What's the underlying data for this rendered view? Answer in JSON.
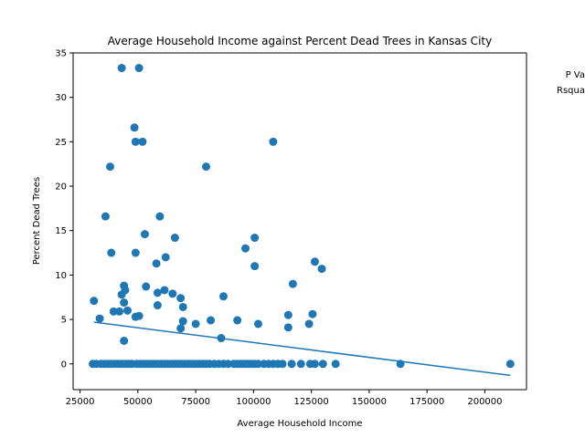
{
  "chart_data": {
    "type": "scatter",
    "title": "Average Household Income against Percent Dead Trees in Kansas City",
    "xlabel": "Average Household Income",
    "ylabel": "Percent Dead Trees",
    "xlim": [
      22000,
      218000
    ],
    "ylim": [
      -2.9,
      35
    ],
    "xticks": [
      25000,
      50000,
      75000,
      100000,
      125000,
      150000,
      175000,
      200000
    ],
    "yticks": [
      0,
      5,
      10,
      15,
      20,
      25,
      30,
      35
    ],
    "grid": false,
    "legend": "none",
    "annotations": [
      "P Va",
      "Rsqua"
    ],
    "colors": {
      "points": "#1f77b4",
      "line": "#1f77b4"
    },
    "trendline": {
      "x": [
        31000,
        211000
      ],
      "y": [
        4.7,
        -1.3
      ]
    },
    "points": [
      [
        43000,
        33.3
      ],
      [
        50500,
        33.3
      ],
      [
        48500,
        26.6
      ],
      [
        49000,
        25.0
      ],
      [
        52000,
        25.0
      ],
      [
        108500,
        25.0
      ],
      [
        38000,
        22.2
      ],
      [
        79500,
        22.2
      ],
      [
        36000,
        16.6
      ],
      [
        59500,
        16.6
      ],
      [
        53000,
        14.6
      ],
      [
        66000,
        14.2
      ],
      [
        100500,
        14.2
      ],
      [
        96500,
        13.0
      ],
      [
        38500,
        12.5
      ],
      [
        49000,
        12.5
      ],
      [
        62000,
        12.0
      ],
      [
        126500,
        11.5
      ],
      [
        58000,
        11.3
      ],
      [
        100500,
        11.0
      ],
      [
        129500,
        10.7
      ],
      [
        117000,
        9.0
      ],
      [
        44000,
        8.8
      ],
      [
        53500,
        8.7
      ],
      [
        44500,
        8.3
      ],
      [
        61500,
        8.3
      ],
      [
        43000,
        7.8
      ],
      [
        58500,
        8.0
      ],
      [
        65000,
        7.9
      ],
      [
        87000,
        7.6
      ],
      [
        68500,
        7.4
      ],
      [
        31000,
        7.1
      ],
      [
        44000,
        6.9
      ],
      [
        58500,
        6.6
      ],
      [
        69500,
        6.4
      ],
      [
        45500,
        6.0
      ],
      [
        39500,
        5.9
      ],
      [
        42000,
        5.9
      ],
      [
        49000,
        5.3
      ],
      [
        50500,
        5.4
      ],
      [
        33500,
        5.1
      ],
      [
        115000,
        5.5
      ],
      [
        125500,
        5.6
      ],
      [
        81500,
        4.9
      ],
      [
        69500,
        4.8
      ],
      [
        93000,
        4.9
      ],
      [
        102000,
        4.5
      ],
      [
        124000,
        4.5
      ],
      [
        75000,
        4.5
      ],
      [
        115000,
        4.1
      ],
      [
        68500,
        4.0
      ],
      [
        86000,
        2.9
      ],
      [
        44000,
        2.6
      ],
      [
        30500,
        0
      ],
      [
        32000,
        0
      ],
      [
        34000,
        0
      ],
      [
        35500,
        0
      ],
      [
        37000,
        0
      ],
      [
        38500,
        0
      ],
      [
        40000,
        0
      ],
      [
        41500,
        0
      ],
      [
        43000,
        0
      ],
      [
        44500,
        0
      ],
      [
        46000,
        0
      ],
      [
        47500,
        0
      ],
      [
        49500,
        0
      ],
      [
        51000,
        0
      ],
      [
        52500,
        0
      ],
      [
        54000,
        0
      ],
      [
        55500,
        0
      ],
      [
        57000,
        0
      ],
      [
        58500,
        0
      ],
      [
        60000,
        0
      ],
      [
        61500,
        0
      ],
      [
        63000,
        0
      ],
      [
        64500,
        0
      ],
      [
        66000,
        0
      ],
      [
        67500,
        0
      ],
      [
        69000,
        0
      ],
      [
        70500,
        0
      ],
      [
        72000,
        0
      ],
      [
        73500,
        0
      ],
      [
        75000,
        0
      ],
      [
        76500,
        0
      ],
      [
        78000,
        0
      ],
      [
        79500,
        0
      ],
      [
        81000,
        0
      ],
      [
        83000,
        0
      ],
      [
        85000,
        0
      ],
      [
        87000,
        0
      ],
      [
        89000,
        0
      ],
      [
        91500,
        0
      ],
      [
        93000,
        0
      ],
      [
        94500,
        0
      ],
      [
        96000,
        0
      ],
      [
        97500,
        0
      ],
      [
        99000,
        0
      ],
      [
        100500,
        0
      ],
      [
        102000,
        0
      ],
      [
        104500,
        0
      ],
      [
        106500,
        0
      ],
      [
        108500,
        0
      ],
      [
        110500,
        0
      ],
      [
        112500,
        0
      ],
      [
        116500,
        0
      ],
      [
        120500,
        0
      ],
      [
        124500,
        0
      ],
      [
        126500,
        0
      ],
      [
        130000,
        0
      ],
      [
        135500,
        0
      ],
      [
        163500,
        0
      ],
      [
        211000,
        0
      ]
    ]
  }
}
